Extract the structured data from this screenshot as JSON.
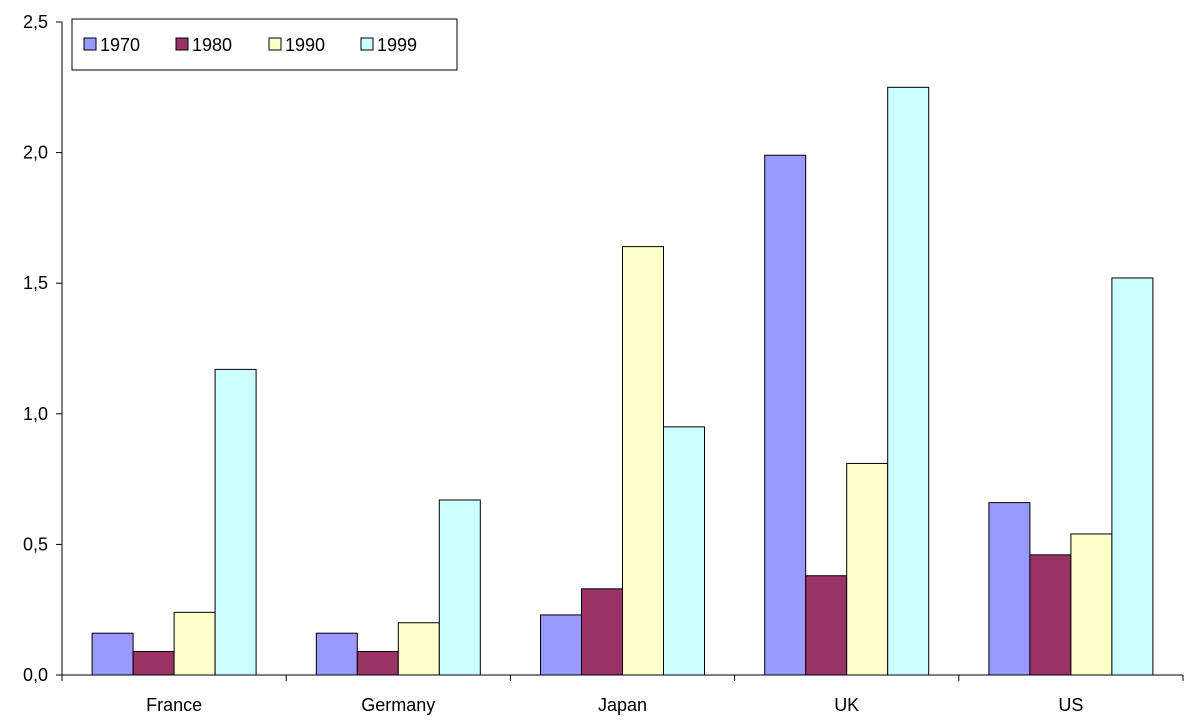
{
  "chart_data": {
    "type": "bar",
    "categories": [
      "France",
      "Germany",
      "Japan",
      "UK",
      "US"
    ],
    "series": [
      {
        "name": "1970",
        "color": "#9999FF",
        "values": [
          0.16,
          0.16,
          0.23,
          1.99,
          0.66
        ]
      },
      {
        "name": "1980",
        "color": "#993366",
        "values": [
          0.09,
          0.09,
          0.33,
          0.38,
          0.46
        ]
      },
      {
        "name": "1990",
        "color": "#FFFFCC",
        "values": [
          0.24,
          0.2,
          1.64,
          0.81,
          0.54
        ]
      },
      {
        "name": "1999",
        "color": "#CCFFFF",
        "values": [
          1.17,
          0.67,
          0.95,
          2.25,
          1.52
        ]
      }
    ],
    "ylim": [
      0,
      2.5
    ],
    "yticks": [
      0,
      0.5,
      1.0,
      1.5,
      2.0,
      2.5
    ],
    "ytick_labels": [
      "0,0",
      "0,5",
      "1,0",
      "1,5",
      "2,0",
      "2,5"
    ],
    "grid": false,
    "legend": {
      "position": "top-left",
      "orientation": "horizontal"
    },
    "title": "",
    "xlabel": "",
    "ylabel": ""
  }
}
